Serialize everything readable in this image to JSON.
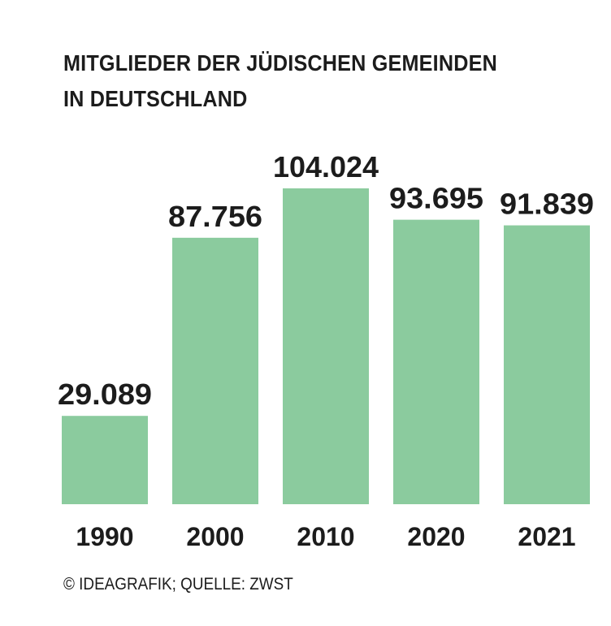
{
  "chart_data": {
    "type": "bar",
    "title": "MITGLIEDER DER JÜDISCHEN GEMEINDEN IN DEUTSCHLAND",
    "title_lines": [
      "MITGLIEDER DER JÜDISCHEN GEMEINDEN",
      "IN DEUTSCHLAND"
    ],
    "categories": [
      "1990",
      "2000",
      "2010",
      "2020",
      "2021"
    ],
    "values": [
      29089,
      87756,
      104024,
      93695,
      91839
    ],
    "value_labels": [
      "29.089",
      "87.756",
      "104.024",
      "93.695",
      "91.839"
    ],
    "xlabel": "",
    "ylabel": "",
    "ylim": [
      0,
      104024
    ],
    "grid": false,
    "legend": "none",
    "bar_color": "#8bcb9e",
    "text_color": "#1c1c1c"
  },
  "source": "© IDEAGRAFIK; QUELLE: ZWST"
}
